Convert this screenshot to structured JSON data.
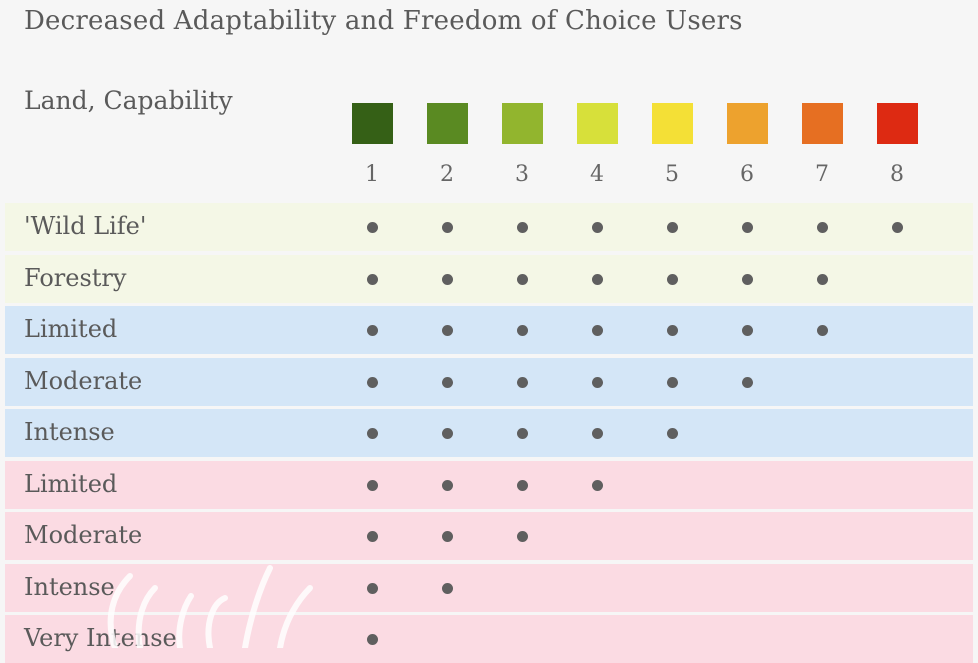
{
  "title": "Decreased Adaptability and Freedom of Choice Users",
  "header_label": "Land, Capability",
  "classes": [
    {
      "num": "1",
      "color": "#356016"
    },
    {
      "num": "2",
      "color": "#5a8a22"
    },
    {
      "num": "3",
      "color": "#92b52e"
    },
    {
      "num": "4",
      "color": "#d7e03a"
    },
    {
      "num": "5",
      "color": "#f4e036"
    },
    {
      "num": "6",
      "color": "#eda22e"
    },
    {
      "num": "7",
      "color": "#e66f22"
    },
    {
      "num": "8",
      "color": "#dd2a12"
    }
  ],
  "rows": [
    {
      "label": "'Wild Life'",
      "group": "green",
      "max_class": 8
    },
    {
      "label": "Forestry",
      "group": "green",
      "max_class": 7
    },
    {
      "label": "Limited",
      "group": "blue",
      "max_class": 7
    },
    {
      "label": "Moderate",
      "group": "blue",
      "max_class": 6
    },
    {
      "label": "Intense",
      "group": "blue",
      "max_class": 5
    },
    {
      "label": "Limited",
      "group": "pink",
      "max_class": 4
    },
    {
      "label": "Moderate",
      "group": "pink",
      "max_class": 3
    },
    {
      "label": "Intense",
      "group": "pink",
      "max_class": 2
    },
    {
      "label": "Very Intense",
      "group": "pink",
      "max_class": 1
    }
  ],
  "group_colors": {
    "green": "#f4f7e6",
    "blue": "#d4e6f7",
    "pink": "#fbdbe3"
  },
  "dot_color": "#5f5f5f"
}
